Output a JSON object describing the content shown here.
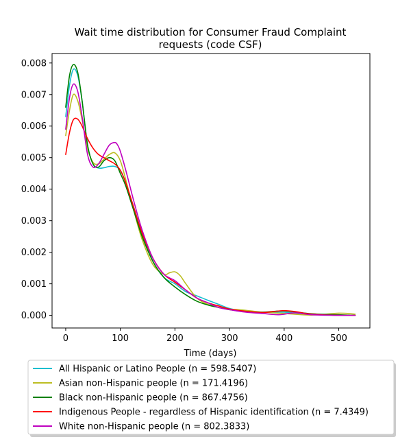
{
  "chart_data": {
    "type": "line",
    "title_lines": [
      "Wait time distribution  for Consumer Fraud Complaint",
      "requests (code CSF)"
    ],
    "xlabel": "Time (days)",
    "ylabel": "",
    "xlim": [
      -25,
      557
    ],
    "ylim": [
      -0.0004,
      0.0083
    ],
    "x_ticks": [
      0,
      100,
      200,
      300,
      400,
      500
    ],
    "y_ticks": [
      0.0,
      0.001,
      0.002,
      0.003,
      0.004,
      0.005,
      0.006,
      0.007,
      0.008
    ],
    "y_tick_labels": [
      "0.000",
      "0.001",
      "0.002",
      "0.003",
      "0.004",
      "0.005",
      "0.006",
      "0.007",
      "0.008"
    ],
    "grid": false,
    "legend_position": "below plot",
    "series": [
      {
        "name": "All Hispanic or Latino People (n = 598.5407)",
        "color": "#17becf",
        "x": [
          0,
          7,
          14,
          22,
          30,
          40,
          50,
          60,
          70,
          80,
          90,
          100,
          110,
          125,
          140,
          160,
          180,
          200,
          220,
          240,
          260,
          280,
          300,
          330,
          360,
          400,
          450,
          500,
          530
        ],
        "y": [
          0.0063,
          0.0073,
          0.0078,
          0.0076,
          0.0068,
          0.0054,
          0.0048,
          0.00467,
          0.00468,
          0.00472,
          0.00472,
          0.0046,
          0.0042,
          0.0034,
          0.0026,
          0.0017,
          0.0012,
          0.001,
          0.00075,
          0.00062,
          0.00048,
          0.00035,
          0.00022,
          0.00012,
          0.0001,
          0.0001,
          3e-05,
          1e-05,
          0.0
        ]
      },
      {
        "name": "Asian non-Hispanic people (n = 171.4196)",
        "color": "#bcbd22",
        "x": [
          0,
          7,
          14,
          22,
          30,
          40,
          50,
          60,
          70,
          80,
          90,
          100,
          110,
          125,
          140,
          160,
          180,
          190,
          200,
          210,
          220,
          240,
          260,
          280,
          300,
          330,
          360,
          400,
          450,
          500,
          530
        ],
        "y": [
          0.0057,
          0.0065,
          0.007,
          0.0068,
          0.0062,
          0.0053,
          0.00485,
          0.0048,
          0.00495,
          0.0051,
          0.00515,
          0.0049,
          0.0043,
          0.0033,
          0.0024,
          0.0016,
          0.0013,
          0.00135,
          0.00138,
          0.00125,
          0.001,
          0.00055,
          0.00035,
          0.00025,
          0.0002,
          0.00016,
          0.0001,
          6e-05,
          1e-05,
          7e-05,
          4e-05
        ]
      },
      {
        "name": "Black non-Hispanic people (n = 867.4756)",
        "color": "#008000",
        "x": [
          0,
          7,
          14,
          22,
          30,
          40,
          50,
          60,
          70,
          80,
          90,
          100,
          110,
          125,
          140,
          160,
          180,
          200,
          220,
          240,
          260,
          280,
          300,
          330,
          360,
          400,
          450,
          500,
          530
        ],
        "y": [
          0.0066,
          0.0076,
          0.00795,
          0.0077,
          0.0068,
          0.0054,
          0.0048,
          0.0047,
          0.0049,
          0.005,
          0.0049,
          0.0045,
          0.0041,
          0.0033,
          0.0025,
          0.0017,
          0.0012,
          0.0009,
          0.00065,
          0.00045,
          0.00033,
          0.00025,
          0.00018,
          0.00012,
          0.0001,
          0.00014,
          5e-05,
          2e-05,
          0.0
        ]
      },
      {
        "name": "Indigenous People - regardless of Hispanic identification (n = 7.4349)",
        "color": "#ff0000",
        "x": [
          0,
          7,
          14,
          22,
          30,
          40,
          50,
          60,
          70,
          80,
          90,
          100,
          110,
          125,
          140,
          160,
          180,
          200,
          220,
          240,
          260,
          280,
          300,
          330,
          360,
          380,
          400,
          420,
          450,
          500,
          530
        ],
        "y": [
          0.0051,
          0.0058,
          0.0062,
          0.00622,
          0.006,
          0.0056,
          0.0053,
          0.0051,
          0.005,
          0.0049,
          0.0048,
          0.0046,
          0.0042,
          0.0034,
          0.0026,
          0.0018,
          0.0013,
          0.00105,
          0.0008,
          0.00055,
          0.0004,
          0.0003,
          0.0002,
          0.00013,
          9e-05,
          0.00012,
          0.00015,
          0.00012,
          4e-05,
          0.0,
          0.0
        ]
      },
      {
        "name": "White non-Hispanic people (n = 802.3833)",
        "color": "#bf00bf",
        "x": [
          0,
          7,
          14,
          22,
          30,
          40,
          50,
          60,
          70,
          80,
          90,
          95,
          100,
          110,
          125,
          140,
          160,
          180,
          200,
          220,
          240,
          260,
          280,
          300,
          330,
          360,
          390,
          420,
          450,
          500,
          530
        ],
        "y": [
          0.0059,
          0.0069,
          0.00733,
          0.0071,
          0.0063,
          0.0051,
          0.0047,
          0.0048,
          0.0051,
          0.0054,
          0.00548,
          0.0054,
          0.0052,
          0.0046,
          0.0036,
          0.0027,
          0.0018,
          0.0013,
          0.0011,
          0.0008,
          0.00055,
          0.0004,
          0.00025,
          0.00018,
          0.0001,
          6e-05,
          2e-05,
          8e-05,
          2e-05,
          0.0,
          0.0
        ]
      }
    ]
  }
}
